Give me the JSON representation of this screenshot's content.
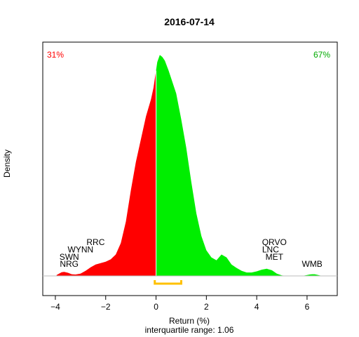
{
  "chart_data": {
    "type": "area",
    "title": "2016-07-14",
    "xlabel": "Return (%)",
    "ylabel": "Density",
    "subtitle": "interquartile range: 1.06",
    "xlim": [
      -4.5,
      7.2
    ],
    "ylim": [
      0,
      0.82
    ],
    "x_ticks": [
      -4,
      -2,
      0,
      2,
      4,
      6
    ],
    "negative_share_label": "31%",
    "positive_share_label": "67%",
    "colors": {
      "negative": "#ff0000",
      "positive": "#00ee00",
      "iqr": "#ffc000",
      "axis": "#000000",
      "baseline": "#bebebe"
    },
    "interquartile_range": [
      -0.05,
      1.0
    ],
    "density": {
      "x": [
        -3.95,
        -3.85,
        -3.75,
        -3.65,
        -3.5,
        -3.35,
        -3.2,
        -3.0,
        -2.8,
        -2.6,
        -2.4,
        -2.2,
        -2.0,
        -1.8,
        -1.6,
        -1.4,
        -1.2,
        -1.0,
        -0.8,
        -0.6,
        -0.4,
        -0.2,
        -0.1,
        0.0,
        0.05,
        0.15,
        0.25,
        0.35,
        0.5,
        0.65,
        0.8,
        1.0,
        1.2,
        1.4,
        1.6,
        1.8,
        2.0,
        2.2,
        2.4,
        2.6,
        2.8,
        3.0,
        3.2,
        3.4,
        3.6,
        3.8,
        4.0,
        4.2,
        4.4,
        4.6,
        4.8,
        5.0,
        5.2,
        5.4,
        5.6,
        5.8,
        6.0,
        6.1,
        6.2,
        6.3,
        6.4,
        6.5,
        6.6
      ],
      "y": [
        0.003,
        0.008,
        0.013,
        0.014,
        0.011,
        0.006,
        0.005,
        0.008,
        0.018,
        0.03,
        0.04,
        0.045,
        0.05,
        0.058,
        0.075,
        0.115,
        0.19,
        0.3,
        0.4,
        0.48,
        0.56,
        0.62,
        0.66,
        0.72,
        0.75,
        0.775,
        0.768,
        0.755,
        0.72,
        0.68,
        0.64,
        0.55,
        0.45,
        0.33,
        0.22,
        0.14,
        0.09,
        0.065,
        0.055,
        0.075,
        0.065,
        0.04,
        0.028,
        0.018,
        0.012,
        0.012,
        0.016,
        0.022,
        0.025,
        0.02,
        0.008,
        0.002,
        0.0,
        0.0,
        0.0,
        0.0,
        0.003,
        0.005,
        0.006,
        0.006,
        0.004,
        0.002,
        0.0
      ]
    },
    "annotations_left": [
      {
        "text": "RRC",
        "x": -2.4,
        "y": 0.108
      },
      {
        "text": "WYNN",
        "x": -3.0,
        "y": 0.083
      },
      {
        "text": "SWN",
        "x": -3.45,
        "y": 0.057
      },
      {
        "text": "NRG",
        "x": -3.45,
        "y": 0.032
      }
    ],
    "annotations_right": [
      {
        "text": "QRVO",
        "x": 4.7,
        "y": 0.108
      },
      {
        "text": "LNC",
        "x": 4.55,
        "y": 0.083
      },
      {
        "text": "MET",
        "x": 4.7,
        "y": 0.057
      },
      {
        "text": "WMB",
        "x": 6.2,
        "y": 0.032
      }
    ]
  }
}
